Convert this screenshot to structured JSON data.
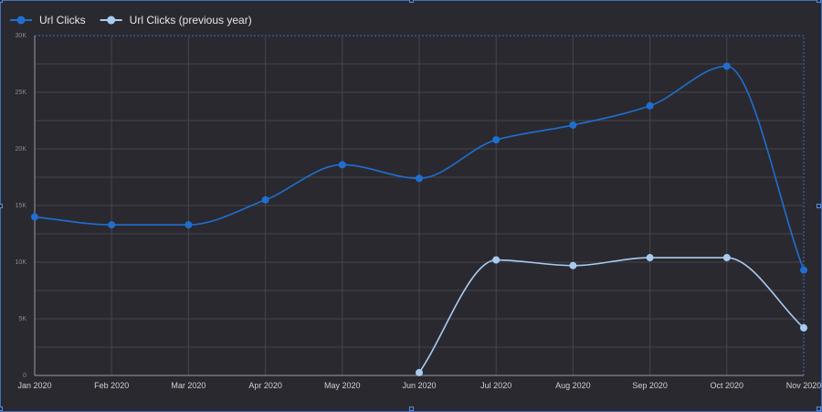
{
  "chart_data": {
    "type": "line",
    "categories": [
      "Jan 2020",
      "Feb 2020",
      "Mar 2020",
      "Apr 2020",
      "May 2020",
      "Jun 2020",
      "Jul 2020",
      "Aug 2020",
      "Sep 2020",
      "Oct 2020",
      "Nov 2020"
    ],
    "series": [
      {
        "name": "Url Clicks",
        "color": "#1f6fd1",
        "values": [
          14000,
          13300,
          13300,
          15500,
          18600,
          17400,
          20800,
          22100,
          23800,
          27300,
          9300
        ]
      },
      {
        "name": "Url Clicks (previous year)",
        "color": "#a9cbf0",
        "values": [
          null,
          null,
          null,
          null,
          null,
          250,
          10200,
          9700,
          10400,
          10400,
          4200
        ]
      }
    ],
    "yticks": [
      {
        "v": 0,
        "label": "0"
      },
      {
        "v": 5000,
        "label": "5K"
      },
      {
        "v": 10000,
        "label": "10K"
      },
      {
        "v": 15000,
        "label": "15K"
      },
      {
        "v": 20000,
        "label": "20K"
      },
      {
        "v": 25000,
        "label": "25K"
      },
      {
        "v": 30000,
        "label": "30K"
      }
    ],
    "ylim": [
      0,
      30000
    ],
    "grid": true,
    "legend": "top-left",
    "title": "",
    "xlabel": "",
    "ylabel": ""
  }
}
